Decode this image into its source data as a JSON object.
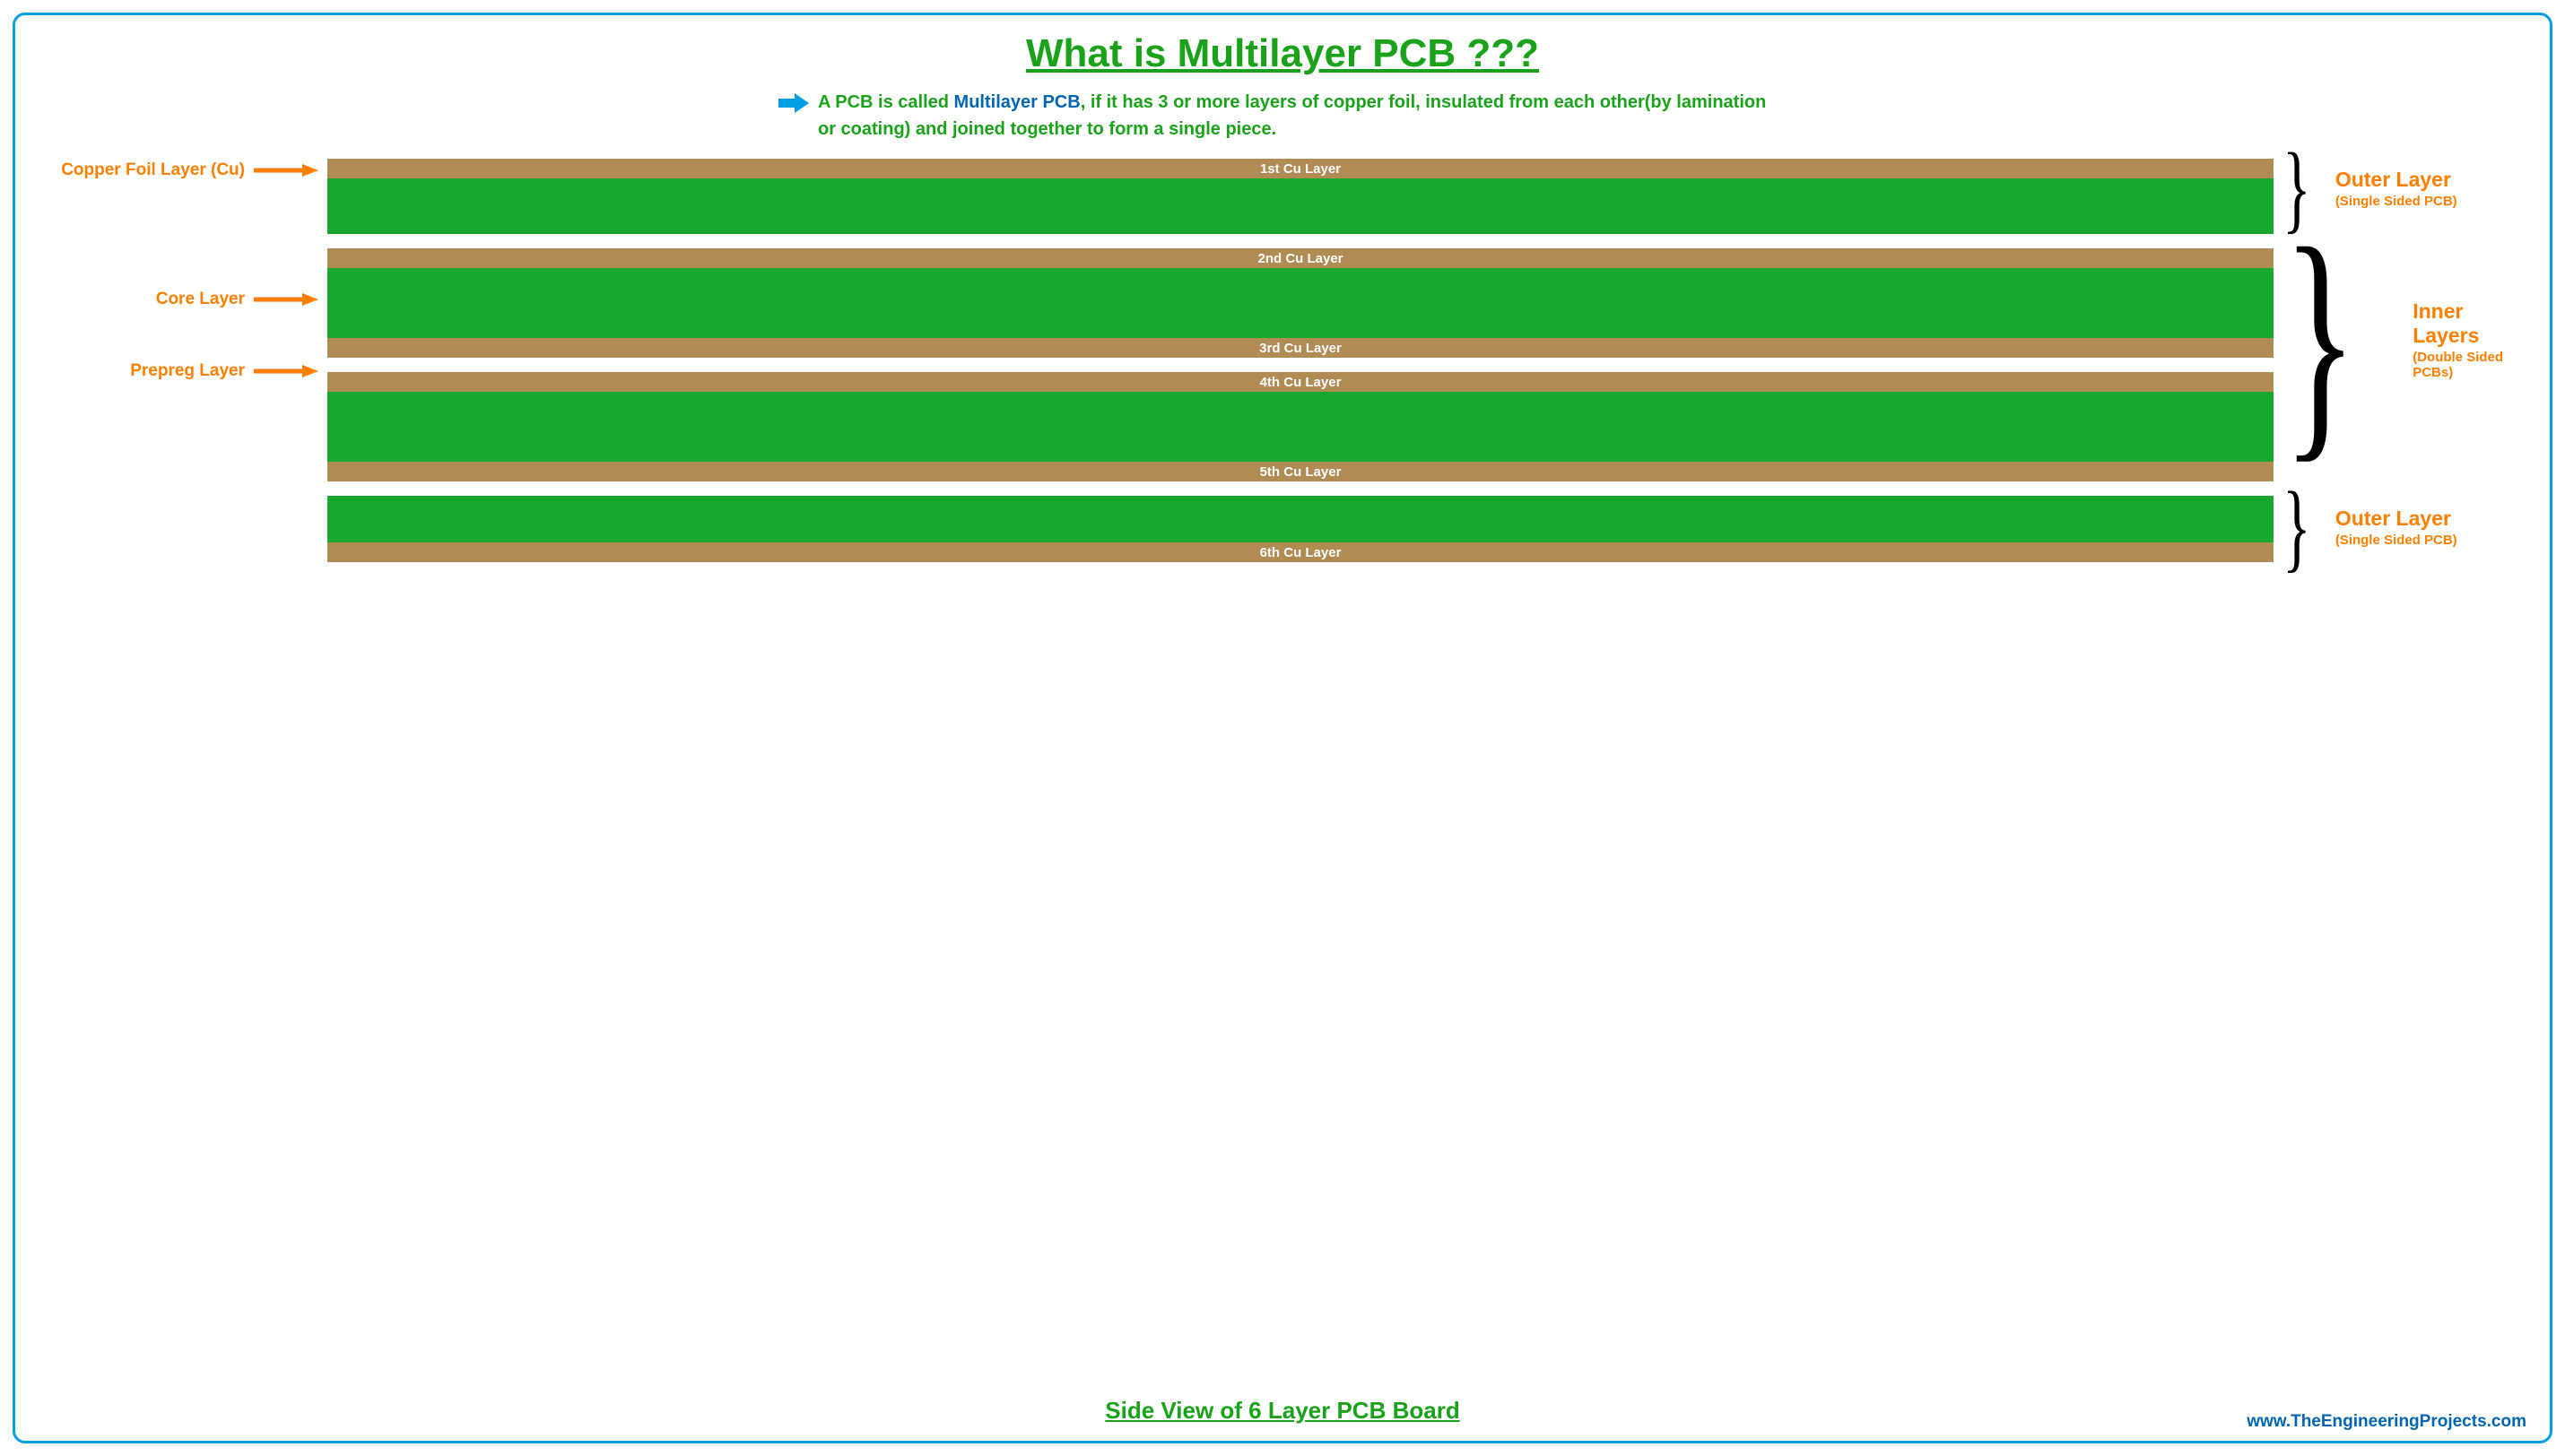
{
  "colors": {
    "frame_border": "#009fe3",
    "title_green": "#1aa31a",
    "text_orange": "#ff7f00",
    "brace_black": "#000000",
    "arrow_blue": "#009fe3",
    "copper": "#b18b54",
    "core_green": "#18a830",
    "cu_text": "#ffffff",
    "link_blue": "#0066b3"
  },
  "title": "What is Multilayer PCB ???",
  "definition": {
    "prefix": "A PCB is called ",
    "highlighted": "Multilayer PCB",
    "suffix": ", if it has 3 or more layers of copper foil, insulated from each other(by lamination or coating) and joined together to form a single piece."
  },
  "left_labels": {
    "copper_foil": "Copper Foil Layer (Cu)",
    "core": "Core Layer",
    "prepreg": "Prepreg Layer"
  },
  "layers": {
    "cu1": "1st Cu Layer",
    "cu2": "2nd Cu Layer",
    "cu3": "3rd Cu Layer",
    "cu4": "4th Cu Layer",
    "cu5": "5th Cu Layer",
    "cu6": "6th Cu Layer"
  },
  "right_labels": {
    "outer": {
      "main": "Outer Layer",
      "sub": "(Single Sided PCB)"
    },
    "inner": {
      "main": "Inner Layers",
      "sub": "(Double Sided PCBs)"
    }
  },
  "subtitle": "Side View of 6 Layer PCB Board",
  "credit": "www.TheEngineeringProjects.com",
  "style": {
    "title_fontsize": 44,
    "definition_fontsize": 20,
    "left_label_fontsize": 19,
    "cu_label_fontsize": 15,
    "right_main_fontsize": 23,
    "right_sub_fontsize": 15,
    "subtitle_fontsize": 26,
    "credit_fontsize": 19,
    "cu_layer_height": 22,
    "outer_core_height": 62,
    "inner_core_height": 78,
    "bottom_core_height": 52,
    "gap_height": 16,
    "arrow_length": 72,
    "arrow_stroke": 5,
    "frame_radius": 14,
    "frame_border_width": 3,
    "brace_small_fontsize": 110,
    "brace_large_fontsize": 290
  }
}
